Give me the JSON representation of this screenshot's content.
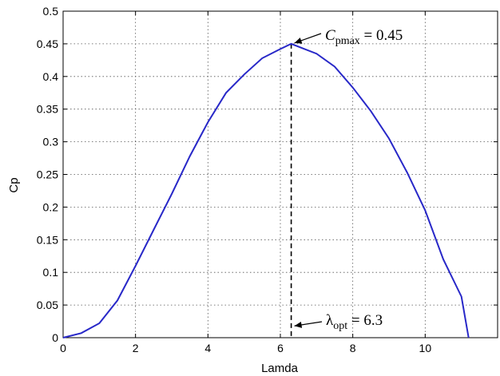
{
  "chart_data": {
    "type": "line",
    "xlabel": "Lamda",
    "ylabel": "Cp",
    "xlim": [
      0,
      12
    ],
    "ylim": [
      0,
      0.5
    ],
    "x_ticks": [
      0,
      2,
      4,
      6,
      8,
      10
    ],
    "x_tick_labels": [
      "0",
      "2",
      "4",
      "6",
      "8",
      "10"
    ],
    "y_ticks": [
      0,
      0.05,
      0.1,
      0.15,
      0.2,
      0.25,
      0.3,
      0.35,
      0.4,
      0.45,
      0.5
    ],
    "y_tick_labels": [
      "0",
      "0.05",
      "0.1",
      "0.15",
      "0.2",
      "0.25",
      "0.3",
      "0.35",
      "0.4",
      "0.45",
      "0.5"
    ],
    "grid": true,
    "line_color": "#2828c8",
    "series": [
      {
        "x": [
          0,
          0.5,
          1.0,
          1.5,
          2.0,
          2.5,
          3.0,
          3.5,
          4.0,
          4.5,
          5.0,
          5.5,
          6.0,
          6.3,
          7.0,
          7.5,
          8.0,
          8.5,
          9.0,
          9.5,
          10.0,
          10.5,
          11.0,
          11.2
        ],
        "y": [
          0,
          0.007,
          0.022,
          0.057,
          0.11,
          0.165,
          0.22,
          0.278,
          0.33,
          0.375,
          0.403,
          0.428,
          0.442,
          0.45,
          0.435,
          0.415,
          0.383,
          0.347,
          0.305,
          0.253,
          0.195,
          0.12,
          0.063,
          0
        ]
      }
    ],
    "vline": {
      "x": 6.3,
      "y_top": 0.45
    },
    "annotations": {
      "max": {
        "main": "C",
        "sub": "pmax",
        "rest": " = 0.45",
        "x": 6.3,
        "y": 0.45
      },
      "opt": {
        "main": "λ",
        "sub": "opt",
        "rest": " = 6.3",
        "x": 6.3,
        "y": 0.018
      }
    }
  }
}
